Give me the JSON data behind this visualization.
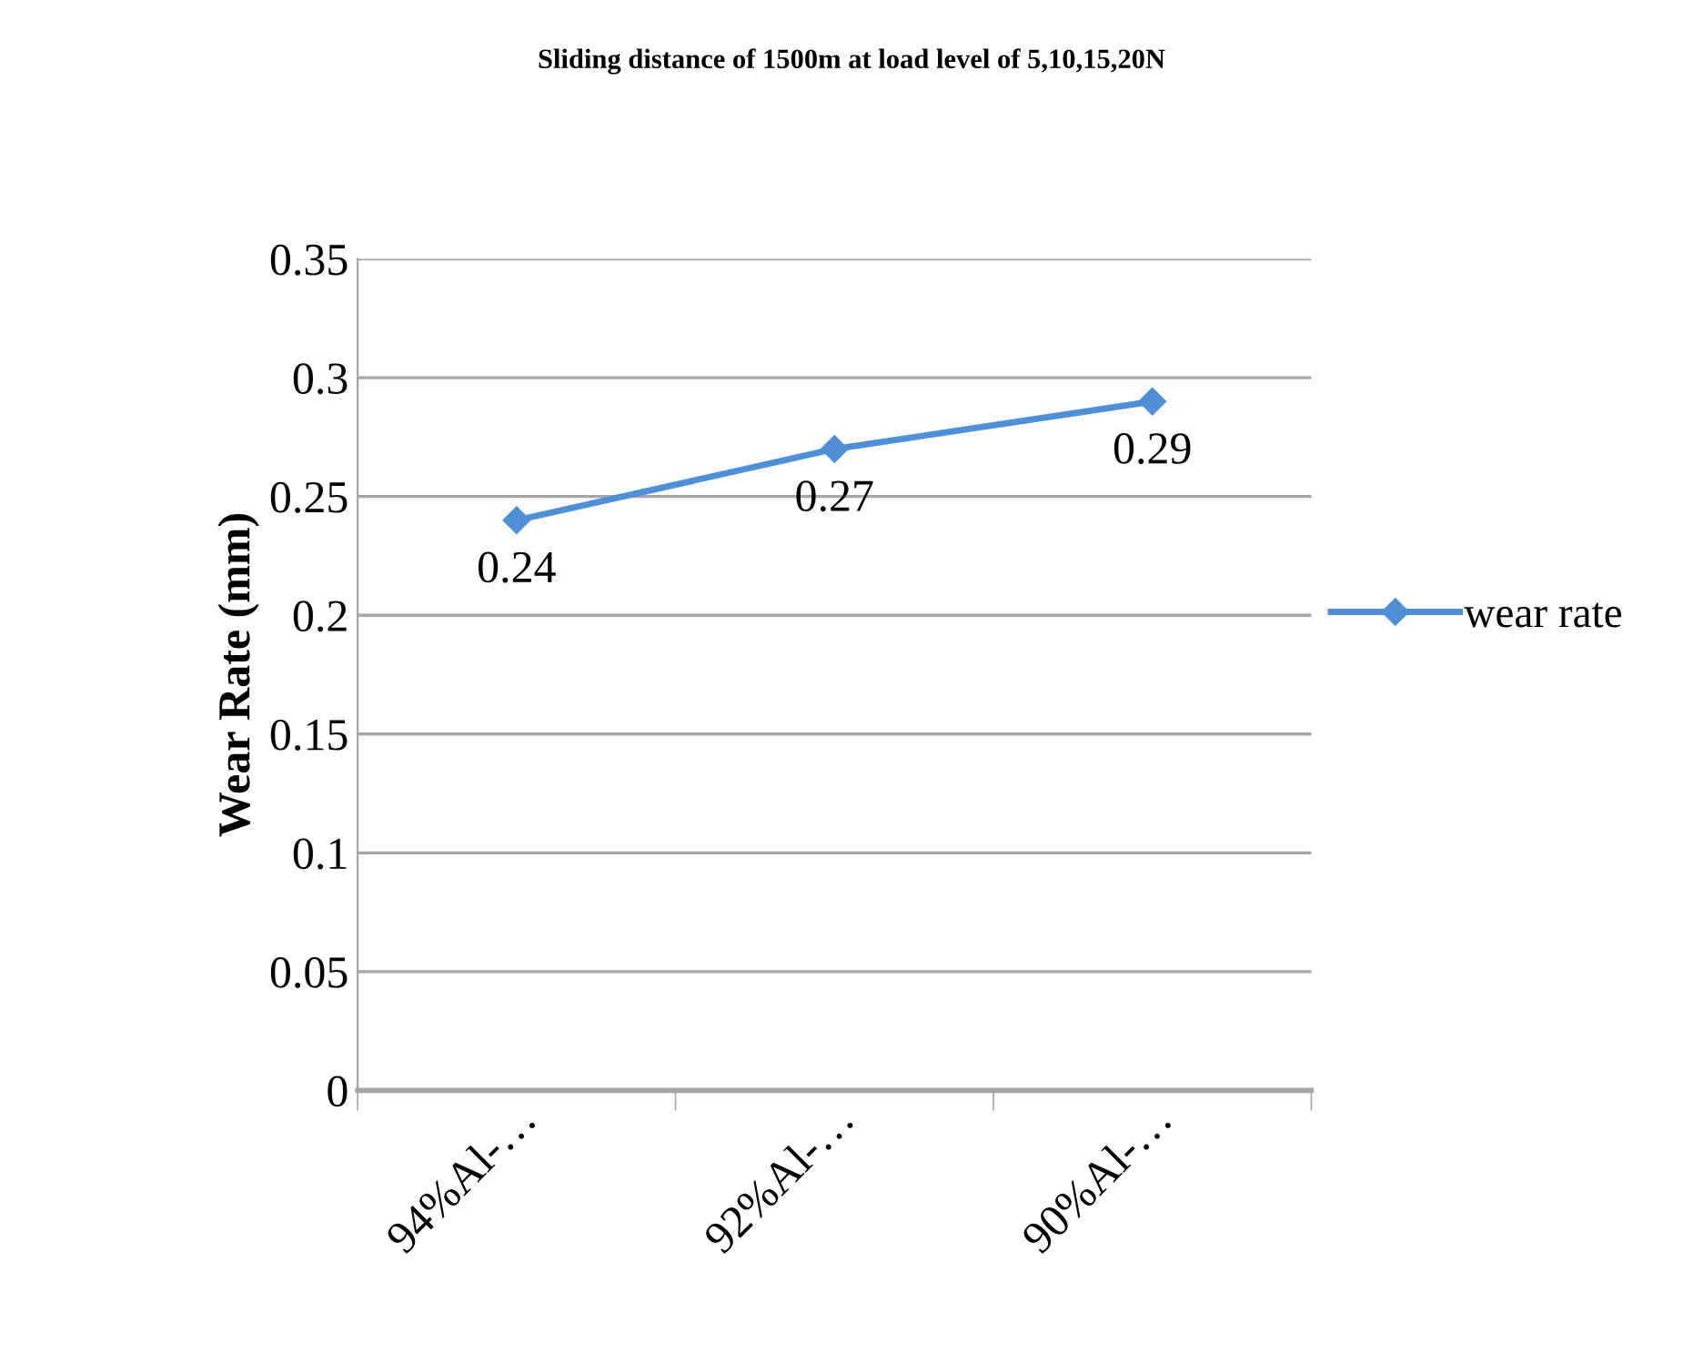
{
  "chart_data": {
    "type": "line",
    "title": "Sliding distance of 1500m at load level of 5,10,15,20N",
    "ylabel": "Wear Rate (mm)",
    "categories": [
      "94%Al-…",
      "92%Al-…",
      "90%Al-…"
    ],
    "series": [
      {
        "name": "wear rate",
        "color": "#4f8fd6",
        "values": [
          0.24,
          0.27,
          0.29
        ]
      }
    ],
    "ylim": [
      0,
      0.35
    ],
    "yticks": [
      0,
      0.05,
      0.1,
      0.15,
      0.2,
      0.25,
      0.3,
      0.35
    ],
    "grid": "y",
    "legend": "right",
    "marker": "diamond",
    "data_labels": true
  }
}
